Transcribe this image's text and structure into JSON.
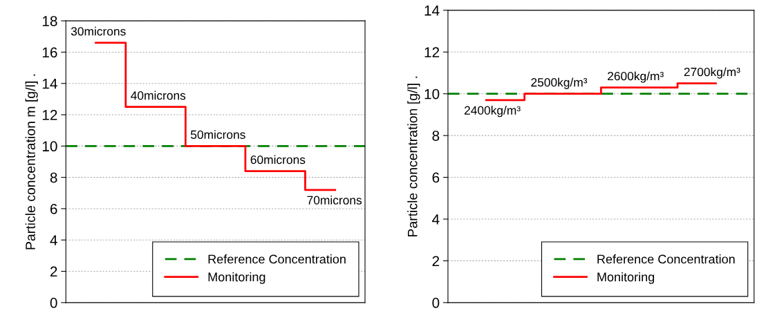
{
  "chart_data": [
    {
      "type": "step",
      "ylabel": "Particle concentration m [g/l] .",
      "categories": [
        null,
        null,
        null,
        null,
        null
      ],
      "ylim": [
        0,
        18
      ],
      "yticks": [
        0,
        2,
        4,
        6,
        8,
        10,
        12,
        14,
        16,
        18
      ],
      "grid": "y",
      "legend": "bottom right",
      "ref_lines": [
        {
          "axis": "y",
          "value": 10,
          "label": "Reference Concentration",
          "color": "#008000",
          "line_style": "dashed"
        }
      ],
      "series": [
        {
          "name": "Monitoring",
          "color": "#ff0000",
          "values": [
            16.6,
            12.5,
            10,
            8.4,
            7.2
          ]
        }
      ],
      "annotations": [
        "30microns",
        "40microns",
        "50microns",
        "60microns",
        "70microns"
      ]
    },
    {
      "type": "step",
      "ylabel": "Particle concentration [g/l] .",
      "categories": [
        null,
        null,
        null,
        null
      ],
      "ylim": [
        0,
        14
      ],
      "yticks": [
        0,
        2,
        4,
        6,
        8,
        10,
        12,
        14
      ],
      "grid": "y",
      "legend": "bottom right",
      "ref_lines": [
        {
          "axis": "y",
          "value": 10,
          "label": "Reference Concentration",
          "color": "#008000",
          "line_style": "dashed"
        }
      ],
      "series": [
        {
          "name": "Monitoring",
          "color": "#ff0000",
          "values": [
            9.7,
            10,
            10.3,
            10.5
          ]
        }
      ],
      "annotations": [
        "2400kg/m³",
        "2500kg/m³",
        "2600kg/m³",
        "2700kg/m³"
      ]
    }
  ]
}
